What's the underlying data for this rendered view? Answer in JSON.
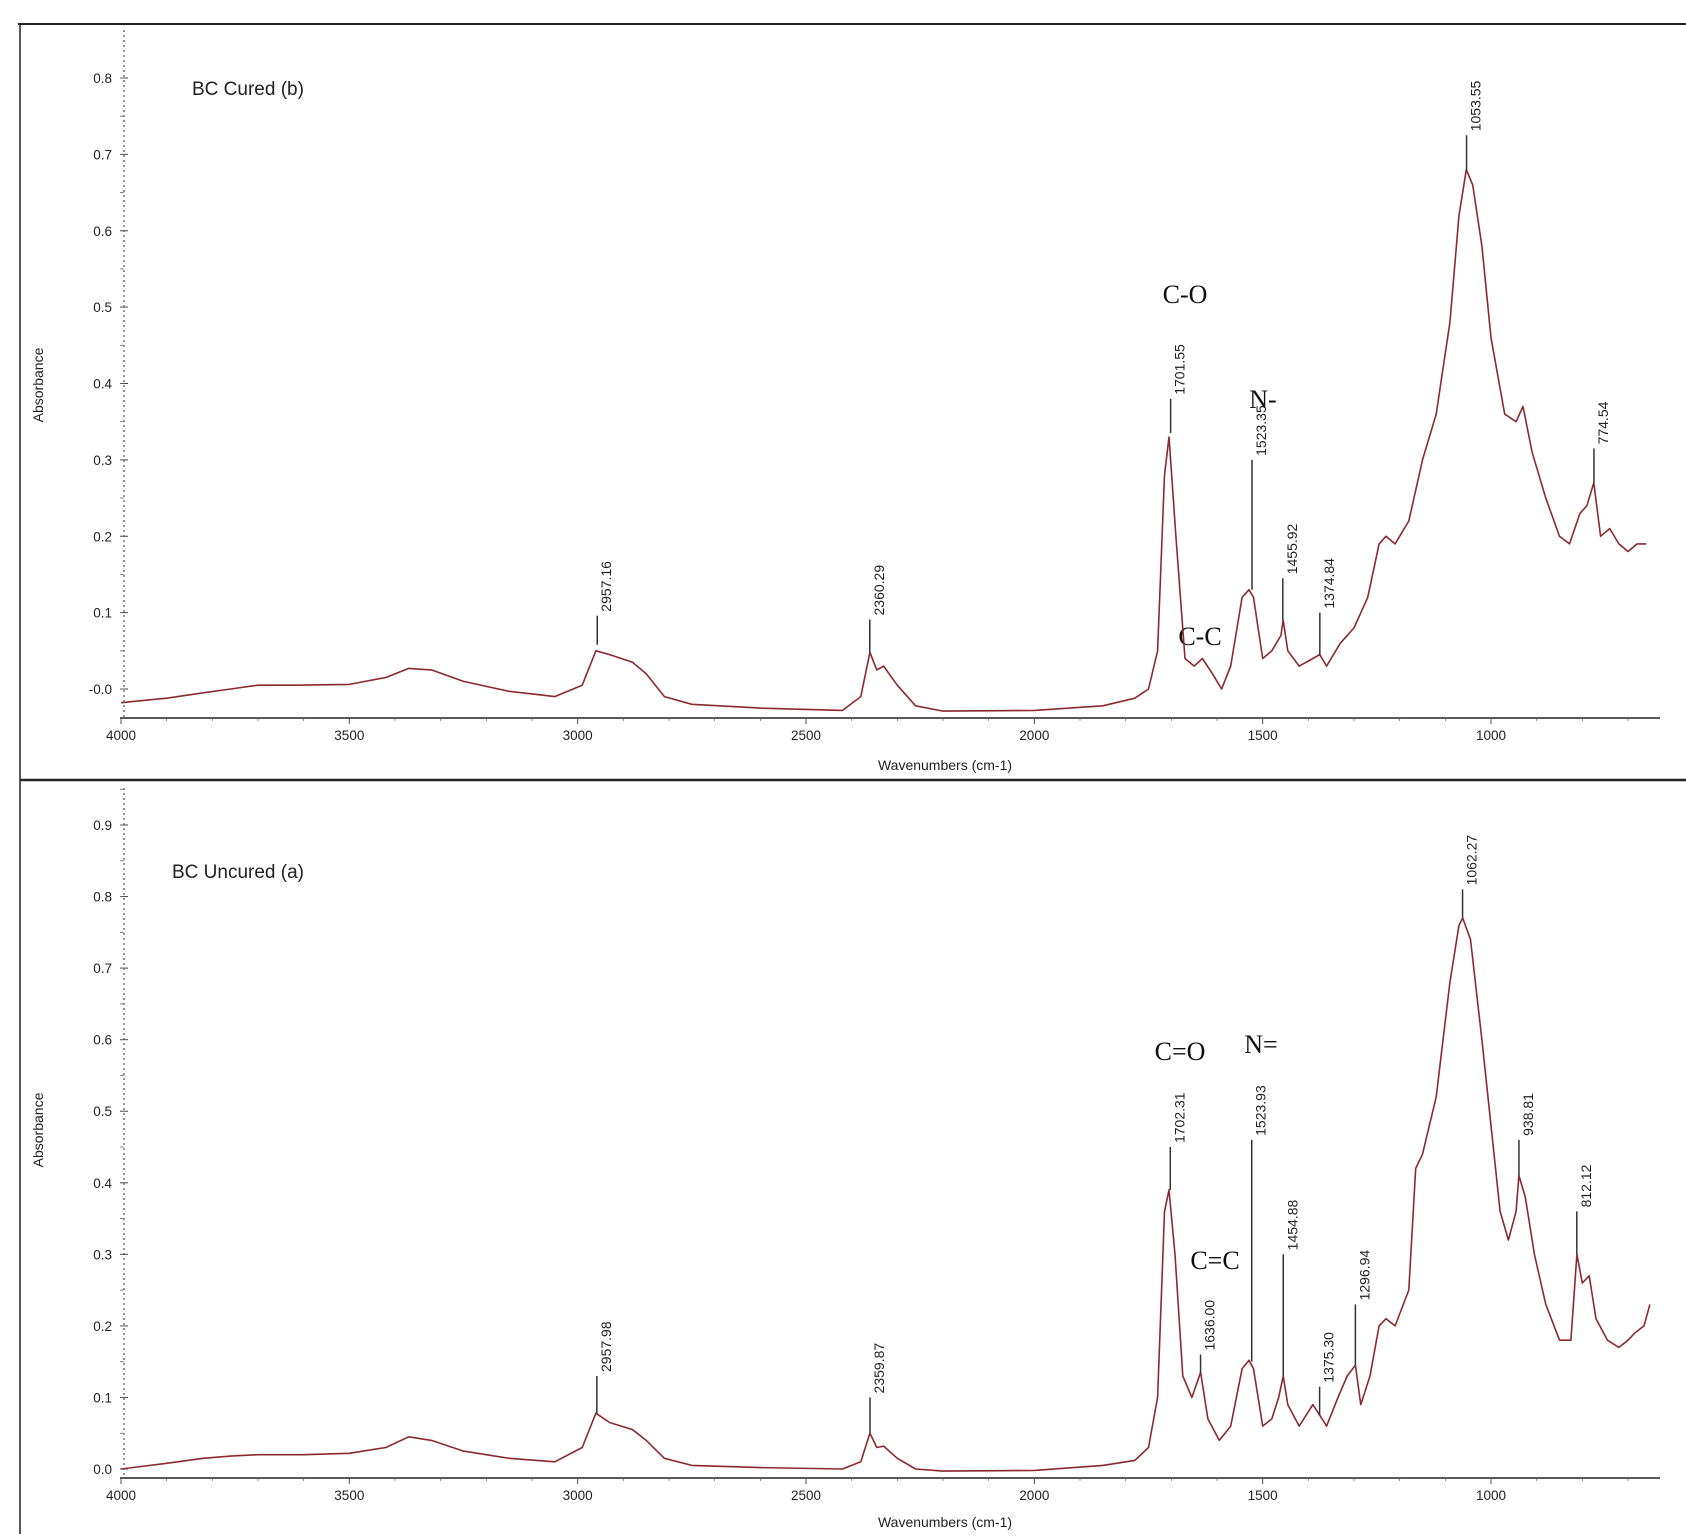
{
  "colors": {
    "spectrum": "#8b2a2e",
    "axis": "#222222",
    "peak_marker": "#333333"
  },
  "chart_data": [
    {
      "type": "line",
      "title": "BC Cured (b)",
      "xlabel": "Wavenumbers (cm-1)",
      "ylabel": "Absorbance",
      "xlim": [
        4000,
        650
      ],
      "ylim": [
        -0.03,
        0.82
      ],
      "x_reversed": true,
      "x_ticks": [
        4000,
        3500,
        3000,
        2500,
        2000,
        1500,
        1000
      ],
      "x_tick_labels": [
        "4000",
        "3500",
        "3000",
        "2500",
        "2000",
        "1500",
        "1000"
      ],
      "y_ticks": [
        0.0,
        0.1,
        0.2,
        0.3,
        0.4,
        0.5,
        0.6,
        0.7,
        0.8
      ],
      "y_tick_labels": [
        "-0.0",
        "0.1",
        "0.2",
        "0.3",
        "0.4",
        "0.5",
        "0.6",
        "0.7",
        "0.8"
      ],
      "series": [
        {
          "points": [
            [
              4000,
              -0.018
            ],
            [
              3900,
              -0.012
            ],
            [
              3820,
              -0.005
            ],
            [
              3760,
              0.0
            ],
            [
              3700,
              0.005
            ],
            [
              3620,
              0.005
            ],
            [
              3500,
              0.006
            ],
            [
              3420,
              0.015
            ],
            [
              3370,
              0.027
            ],
            [
              3320,
              0.025
            ],
            [
              3250,
              0.01
            ],
            [
              3150,
              -0.003
            ],
            [
              3050,
              -0.01
            ],
            [
              2990,
              0.005
            ],
            [
              2960,
              0.05
            ],
            [
              2930,
              0.045
            ],
            [
              2880,
              0.035
            ],
            [
              2850,
              0.02
            ],
            [
              2810,
              -0.01
            ],
            [
              2750,
              -0.02
            ],
            [
              2600,
              -0.025
            ],
            [
              2420,
              -0.028
            ],
            [
              2380,
              -0.01
            ],
            [
              2360,
              0.048
            ],
            [
              2345,
              0.025
            ],
            [
              2330,
              0.03
            ],
            [
              2300,
              0.005
            ],
            [
              2260,
              -0.022
            ],
            [
              2200,
              -0.029
            ],
            [
              2000,
              -0.028
            ],
            [
              1850,
              -0.022
            ],
            [
              1780,
              -0.012
            ],
            [
              1750,
              0.0
            ],
            [
              1730,
              0.05
            ],
            [
              1715,
              0.28
            ],
            [
              1705,
              0.33
            ],
            [
              1690,
              0.2
            ],
            [
              1670,
              0.04
            ],
            [
              1650,
              0.03
            ],
            [
              1632,
              0.04
            ],
            [
              1610,
              0.02
            ],
            [
              1590,
              0.0
            ],
            [
              1570,
              0.03
            ],
            [
              1545,
              0.12
            ],
            [
              1530,
              0.13
            ],
            [
              1520,
              0.12
            ],
            [
              1500,
              0.04
            ],
            [
              1480,
              0.05
            ],
            [
              1460,
              0.07
            ],
            [
              1455,
              0.09
            ],
            [
              1445,
              0.05
            ],
            [
              1420,
              0.03
            ],
            [
              1390,
              0.04
            ],
            [
              1375,
              0.045
            ],
            [
              1360,
              0.03
            ],
            [
              1330,
              0.06
            ],
            [
              1300,
              0.08
            ],
            [
              1270,
              0.12
            ],
            [
              1245,
              0.19
            ],
            [
              1230,
              0.2
            ],
            [
              1210,
              0.19
            ],
            [
              1180,
              0.22
            ],
            [
              1150,
              0.3
            ],
            [
              1120,
              0.36
            ],
            [
              1090,
              0.48
            ],
            [
              1070,
              0.62
            ],
            [
              1054,
              0.68
            ],
            [
              1040,
              0.66
            ],
            [
              1020,
              0.58
            ],
            [
              1000,
              0.46
            ],
            [
              970,
              0.36
            ],
            [
              945,
              0.35
            ],
            [
              930,
              0.37
            ],
            [
              910,
              0.31
            ],
            [
              880,
              0.25
            ],
            [
              850,
              0.2
            ],
            [
              828,
              0.19
            ],
            [
              805,
              0.23
            ],
            [
              790,
              0.24
            ],
            [
              775,
              0.27
            ],
            [
              760,
              0.2
            ],
            [
              740,
              0.21
            ],
            [
              720,
              0.19
            ],
            [
              700,
              0.18
            ],
            [
              680,
              0.19
            ],
            [
              660,
              0.19
            ]
          ]
        }
      ],
      "peaks": [
        {
          "x": 2957.16,
          "y_top": 0.096,
          "y_base": 0.058,
          "label": "2957.16"
        },
        {
          "x": 2360.29,
          "y_top": 0.091,
          "y_base": 0.048,
          "label": "2360.29"
        },
        {
          "x": 1701.55,
          "y_top": 0.38,
          "y_base": 0.335,
          "label": "1701.55"
        },
        {
          "x": 1523.35,
          "y_top": 0.3,
          "y_base": 0.13,
          "label": "1523.35"
        },
        {
          "x": 1455.92,
          "y_top": 0.145,
          "y_base": 0.09,
          "label": "1455.92"
        },
        {
          "x": 1374.84,
          "y_top": 0.1,
          "y_base": 0.045,
          "label": "1374.84"
        },
        {
          "x": 1053.55,
          "y_top": 0.725,
          "y_base": 0.68,
          "label": "1053.55"
        },
        {
          "x": 774.54,
          "y_top": 0.315,
          "y_base": 0.27,
          "label": "774.54"
        }
      ],
      "annotations": [
        "C-O",
        "N-",
        "C-C"
      ]
    },
    {
      "type": "line",
      "title": "BC Uncured (a)",
      "xlabel": "Wavenumbers (cm-1)",
      "ylabel": "Absorbance",
      "xlim": [
        4000,
        650
      ],
      "ylim": [
        -0.02,
        0.95
      ],
      "x_reversed": true,
      "x_ticks": [
        4000,
        3500,
        3000,
        2500,
        2000,
        1500,
        1000
      ],
      "x_tick_labels": [
        "4000",
        "3500",
        "3000",
        "2500",
        "2000",
        "1500",
        "1000"
      ],
      "y_ticks": [
        0.0,
        0.1,
        0.2,
        0.3,
        0.4,
        0.5,
        0.6,
        0.7,
        0.8,
        0.9
      ],
      "y_tick_labels": [
        "0.0",
        "0.1",
        "0.2",
        "0.3",
        "0.4",
        "0.5",
        "0.6",
        "0.7",
        "0.8",
        "0.9"
      ],
      "series": [
        {
          "points": [
            [
              4000,
              0.0
            ],
            [
              3900,
              0.008
            ],
            [
              3820,
              0.015
            ],
            [
              3760,
              0.018
            ],
            [
              3700,
              0.02
            ],
            [
              3600,
              0.02
            ],
            [
              3500,
              0.022
            ],
            [
              3420,
              0.03
            ],
            [
              3370,
              0.045
            ],
            [
              3320,
              0.04
            ],
            [
              3250,
              0.025
            ],
            [
              3150,
              0.015
            ],
            [
              3050,
              0.01
            ],
            [
              2990,
              0.03
            ],
            [
              2960,
              0.078
            ],
            [
              2930,
              0.065
            ],
            [
              2880,
              0.055
            ],
            [
              2850,
              0.04
            ],
            [
              2810,
              0.015
            ],
            [
              2750,
              0.005
            ],
            [
              2600,
              0.002
            ],
            [
              2420,
              0.0
            ],
            [
              2380,
              0.01
            ],
            [
              2360,
              0.05
            ],
            [
              2345,
              0.03
            ],
            [
              2330,
              0.032
            ],
            [
              2300,
              0.015
            ],
            [
              2260,
              0.0
            ],
            [
              2200,
              -0.003
            ],
            [
              2000,
              -0.002
            ],
            [
              1850,
              0.005
            ],
            [
              1780,
              0.012
            ],
            [
              1750,
              0.03
            ],
            [
              1730,
              0.1
            ],
            [
              1715,
              0.36
            ],
            [
              1705,
              0.39
            ],
            [
              1692,
              0.3
            ],
            [
              1675,
              0.13
            ],
            [
              1655,
              0.1
            ],
            [
              1636,
              0.135
            ],
            [
              1620,
              0.07
            ],
            [
              1595,
              0.04
            ],
            [
              1570,
              0.06
            ],
            [
              1545,
              0.14
            ],
            [
              1530,
              0.152
            ],
            [
              1520,
              0.14
            ],
            [
              1500,
              0.06
            ],
            [
              1480,
              0.07
            ],
            [
              1465,
              0.1
            ],
            [
              1455,
              0.13
            ],
            [
              1445,
              0.09
            ],
            [
              1420,
              0.06
            ],
            [
              1390,
              0.09
            ],
            [
              1375,
              0.075
            ],
            [
              1360,
              0.06
            ],
            [
              1335,
              0.1
            ],
            [
              1315,
              0.13
            ],
            [
              1297,
              0.145
            ],
            [
              1285,
              0.09
            ],
            [
              1265,
              0.13
            ],
            [
              1245,
              0.2
            ],
            [
              1230,
              0.21
            ],
            [
              1210,
              0.2
            ],
            [
              1180,
              0.25
            ],
            [
              1165,
              0.42
            ],
            [
              1150,
              0.44
            ],
            [
              1120,
              0.52
            ],
            [
              1090,
              0.68
            ],
            [
              1070,
              0.76
            ],
            [
              1062,
              0.77
            ],
            [
              1045,
              0.74
            ],
            [
              1020,
              0.6
            ],
            [
              1000,
              0.48
            ],
            [
              980,
              0.36
            ],
            [
              962,
              0.32
            ],
            [
              945,
              0.36
            ],
            [
              939,
              0.41
            ],
            [
              925,
              0.38
            ],
            [
              905,
              0.3
            ],
            [
              880,
              0.23
            ],
            [
              850,
              0.18
            ],
            [
              825,
              0.18
            ],
            [
              812,
              0.3
            ],
            [
              800,
              0.26
            ],
            [
              785,
              0.27
            ],
            [
              770,
              0.21
            ],
            [
              745,
              0.18
            ],
            [
              720,
              0.17
            ],
            [
              700,
              0.18
            ],
            [
              685,
              0.19
            ],
            [
              665,
              0.2
            ],
            [
              652,
              0.23
            ]
          ]
        }
      ],
      "peaks": [
        {
          "x": 2957.98,
          "y_top": 0.13,
          "y_base": 0.078,
          "label": "2957.98"
        },
        {
          "x": 2359.87,
          "y_top": 0.1,
          "y_base": 0.05,
          "label": "2359.87"
        },
        {
          "x": 1702.31,
          "y_top": 0.45,
          "y_base": 0.39,
          "label": "1702.31"
        },
        {
          "x": 1636.0,
          "y_top": 0.16,
          "y_base": 0.135,
          "label": "1636.00"
        },
        {
          "x": 1523.93,
          "y_top": 0.46,
          "y_base": 0.15,
          "label": "1523.93"
        },
        {
          "x": 1454.88,
          "y_top": 0.3,
          "y_base": 0.13,
          "label": "1454.88"
        },
        {
          "x": 1375.3,
          "y_top": 0.115,
          "y_base": 0.075,
          "label": "1375.30"
        },
        {
          "x": 1296.94,
          "y_top": 0.23,
          "y_base": 0.145,
          "label": "1296.94"
        },
        {
          "x": 1062.27,
          "y_top": 0.81,
          "y_base": 0.77,
          "label": "1062.27"
        },
        {
          "x": 938.81,
          "y_top": 0.46,
          "y_base": 0.41,
          "label": "938.81"
        },
        {
          "x": 812.12,
          "y_top": 0.36,
          "y_base": 0.3,
          "label": "812.12"
        }
      ],
      "annotations": [
        "C=O",
        "N=",
        "C=C"
      ]
    }
  ]
}
